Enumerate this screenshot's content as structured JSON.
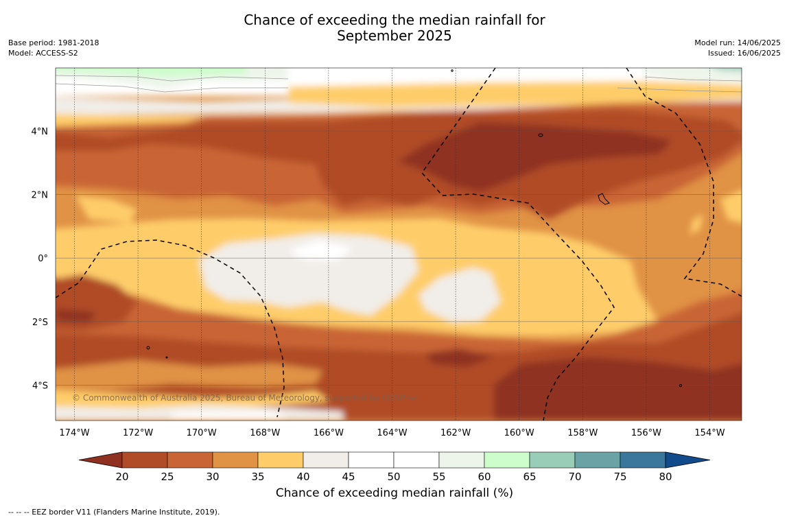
{
  "title_line1": "Chance of exceeding the median rainfall for",
  "title_line2": "September 2025",
  "meta": {
    "base_period": "Base period: 1981-2018",
    "model": "Model: ACCESS-S2",
    "model_run": "Model run: 14/06/2025",
    "issued": "Issued: 16/06/2025"
  },
  "copyright": "© Commonwealth of Australia 2025, Bureau of Meteorology, supported by COSPPac",
  "footnote": "--  --  -- EEZ border V11 (Flanders Marine Institute, 2019).",
  "chart_data": {
    "type": "heatmap",
    "title": "Chance of exceeding the median rainfall for September 2025",
    "x_ticks": [
      "174°W",
      "172°W",
      "170°W",
      "168°W",
      "166°W",
      "164°W",
      "162°W",
      "160°W",
      "158°W",
      "156°W",
      "154°W"
    ],
    "y_ticks": [
      "4°N",
      "2°N",
      "0°",
      "2°S",
      "4°S"
    ],
    "colorbar": {
      "label": "Chance of exceeding median rainfall (%)",
      "ticks": [
        "20",
        "25",
        "30",
        "35",
        "40",
        "45",
        "50",
        "55",
        "60",
        "65",
        "70",
        "75",
        "80"
      ],
      "extend": "both",
      "colors": [
        "#8f3020",
        "#b04c28",
        "#c96534",
        "#e09245",
        "#fecd6a",
        "#f1ede8",
        "#ffffff",
        "#ffffff",
        "#edf5eb",
        "#ccfdcb",
        "#9acdb8",
        "#6aa3a6",
        "#3a779b",
        "#124b8b"
      ]
    }
  }
}
